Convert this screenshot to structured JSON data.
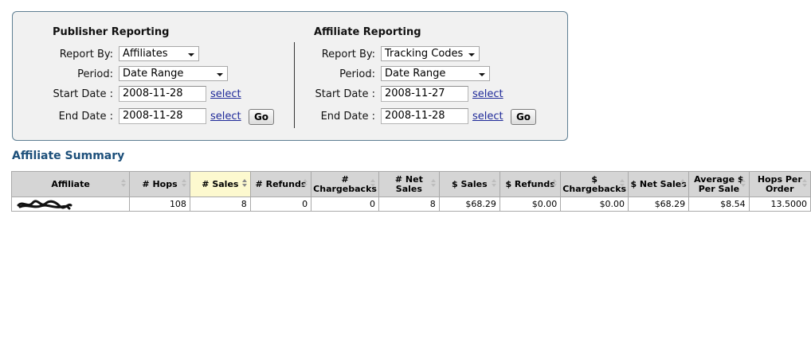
{
  "publisher": {
    "title": "Publisher Reporting",
    "report_by_label": "Report By:",
    "report_by_value": "Affiliates",
    "period_label": "Period:",
    "period_value": "Date Range",
    "start_date_label": "Start Date :",
    "start_date_value": "2008-11-28",
    "end_date_label": "End Date :",
    "end_date_value": "2008-11-28",
    "select_link": "select",
    "go_label": "Go"
  },
  "affiliate": {
    "title": "Affiliate Reporting",
    "report_by_label": "Report By:",
    "report_by_value": "Tracking Codes",
    "period_label": "Period:",
    "period_value": "Date Range",
    "start_date_label": "Start Date :",
    "start_date_value": "2008-11-27",
    "end_date_label": "End Date :",
    "end_date_value": "2008-11-28",
    "select_link": "select",
    "go_label": "Go"
  },
  "summary": {
    "title": "Affiliate Summary",
    "columns": [
      "Affiliate",
      "# Hops",
      "# Sales",
      "# Refunds",
      "# Chargebacks",
      "# Net Sales",
      "$ Sales",
      "$ Refunds",
      "$ Chargebacks",
      "$ Net Sales",
      "Average $ Per Sale",
      "Hops Per Order"
    ],
    "rows": [
      [
        "",
        "108",
        "8",
        "0",
        "0",
        "8",
        "$68.29",
        "$0.00",
        "$0.00",
        "$68.29",
        "$8.54",
        "13.5000"
      ]
    ]
  }
}
